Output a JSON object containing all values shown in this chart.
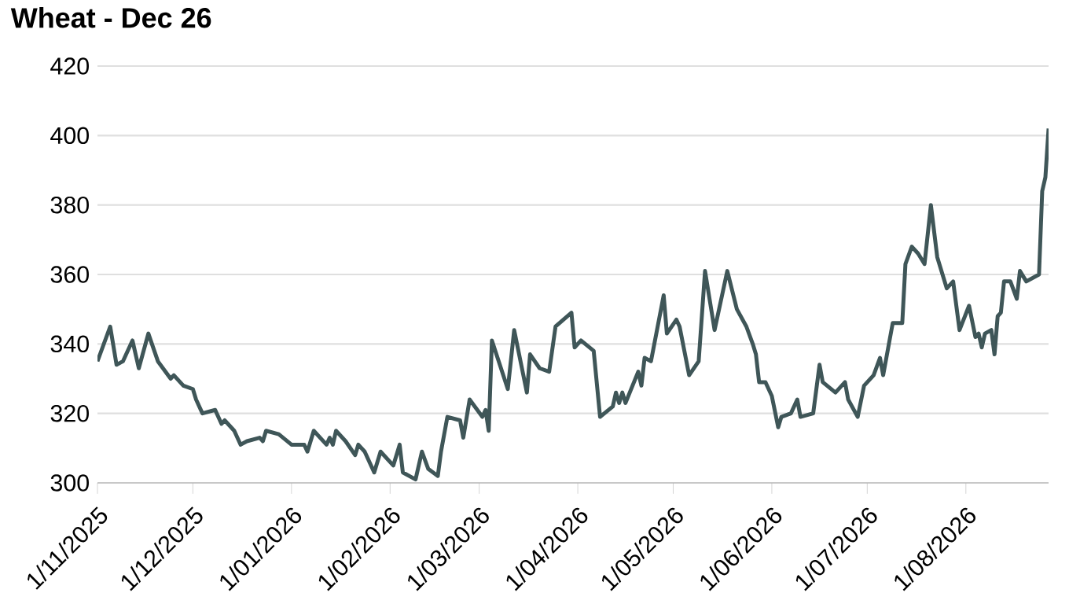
{
  "chart_data": {
    "type": "line",
    "title": "Wheat - Dec 26",
    "grid": "y",
    "xlim": [
      "2025-11-01",
      "2026-08-27"
    ],
    "ylim": [
      300,
      420
    ],
    "yticks": [
      300,
      320,
      340,
      360,
      380,
      400,
      420
    ],
    "xticks": [
      {
        "value": "2025-11-01",
        "label": "1/11/2025"
      },
      {
        "value": "2025-12-01",
        "label": "1/12/2025"
      },
      {
        "value": "2026-01-01",
        "label": "1/01/2026"
      },
      {
        "value": "2026-02-01",
        "label": "1/02/2026"
      },
      {
        "value": "2026-03-01",
        "label": "1/03/2026"
      },
      {
        "value": "2026-04-01",
        "label": "1/04/2026"
      },
      {
        "value": "2026-05-01",
        "label": "1/05/2026"
      },
      {
        "value": "2026-06-01",
        "label": "1/06/2026"
      },
      {
        "value": "2026-07-01",
        "label": "1/07/2026"
      },
      {
        "value": "2026-08-01",
        "label": "1/08/2026"
      }
    ],
    "series": [
      {
        "color": "#3f5658",
        "x": [
          "2025-11-01",
          "2025-11-05",
          "2025-11-07",
          "2025-11-09",
          "2025-11-12",
          "2025-11-14",
          "2025-11-17",
          "2025-11-20",
          "2025-11-24",
          "2025-11-25",
          "2025-11-28",
          "2025-12-01",
          "2025-12-02",
          "2025-12-04",
          "2025-12-08",
          "2025-12-10",
          "2025-12-11",
          "2025-12-14",
          "2025-12-16",
          "2025-12-18",
          "2025-12-22",
          "2025-12-23",
          "2025-12-24",
          "2025-12-28",
          "2026-01-01",
          "2026-01-05",
          "2026-01-06",
          "2026-01-08",
          "2026-01-12",
          "2026-01-13",
          "2026-01-14",
          "2026-01-15",
          "2026-01-18",
          "2026-01-21",
          "2026-01-22",
          "2026-01-24",
          "2026-01-27",
          "2026-01-29",
          "2026-02-02",
          "2026-02-04",
          "2026-02-05",
          "2026-02-09",
          "2026-02-11",
          "2026-02-13",
          "2026-02-16",
          "2026-02-17",
          "2026-02-19",
          "2026-02-23",
          "2026-02-24",
          "2026-02-26",
          "2026-03-02",
          "2026-03-03",
          "2026-03-04",
          "2026-03-05",
          "2026-03-10",
          "2026-03-12",
          "2026-03-16",
          "2026-03-17",
          "2026-03-20",
          "2026-03-23",
          "2026-03-25",
          "2026-03-30",
          "2026-03-31",
          "2026-04-02",
          "2026-04-06",
          "2026-04-08",
          "2026-04-12",
          "2026-04-13",
          "2026-04-14",
          "2026-04-15",
          "2026-04-16",
          "2026-04-20",
          "2026-04-21",
          "2026-04-22",
          "2026-04-24",
          "2026-04-28",
          "2026-04-29",
          "2026-05-02",
          "2026-05-03",
          "2026-05-06",
          "2026-05-09",
          "2026-05-11",
          "2026-05-14",
          "2026-05-18",
          "2026-05-21",
          "2026-05-24",
          "2026-05-26",
          "2026-05-27",
          "2026-05-28",
          "2026-05-30",
          "2026-06-01",
          "2026-06-03",
          "2026-06-04",
          "2026-06-07",
          "2026-06-09",
          "2026-06-10",
          "2026-06-14",
          "2026-06-16",
          "2026-06-17",
          "2026-06-21",
          "2026-06-24",
          "2026-06-25",
          "2026-06-28",
          "2026-06-30",
          "2026-07-03",
          "2026-07-05",
          "2026-07-06",
          "2026-07-09",
          "2026-07-12",
          "2026-07-13",
          "2026-07-15",
          "2026-07-17",
          "2026-07-19",
          "2026-07-21",
          "2026-07-23",
          "2026-07-26",
          "2026-07-28",
          "2026-07-30",
          "2026-08-02",
          "2026-08-04",
          "2026-08-05",
          "2026-08-06",
          "2026-08-07",
          "2026-08-09",
          "2026-08-10",
          "2026-08-11",
          "2026-08-12",
          "2026-08-13",
          "2026-08-15",
          "2026-08-17",
          "2026-08-18",
          "2026-08-20",
          "2026-08-24",
          "2026-08-25",
          "2026-08-26",
          "2026-08-27"
        ],
        "values": [
          335,
          345,
          334,
          335,
          341,
          333,
          343,
          335,
          330,
          331,
          328,
          327,
          324,
          320,
          321,
          317,
          318,
          315,
          311,
          312,
          313,
          312,
          315,
          314,
          311,
          311,
          309,
          315,
          311,
          313,
          311,
          315,
          312,
          308,
          311,
          309,
          303,
          309,
          305,
          311,
          303,
          301,
          309,
          304,
          302,
          309,
          319,
          318,
          313,
          324,
          319,
          321,
          315,
          341,
          327,
          344,
          326,
          337,
          333,
          332,
          345,
          349,
          339,
          341,
          338,
          319,
          322,
          326,
          323,
          326,
          323,
          332,
          328,
          336,
          335,
          354,
          343,
          347,
          345,
          331,
          335,
          361,
          344,
          361,
          350,
          345,
          340,
          337,
          329,
          329,
          325,
          316,
          319,
          320,
          324,
          319,
          320,
          334,
          329,
          326,
          329,
          324,
          319,
          328,
          331,
          336,
          331,
          346,
          346,
          363,
          368,
          366,
          363,
          380,
          365,
          356,
          358,
          344,
          351,
          342,
          343,
          339,
          343,
          344,
          337,
          348,
          349,
          358,
          358,
          353,
          361,
          358,
          360,
          384,
          388,
          402
        ]
      }
    ]
  }
}
